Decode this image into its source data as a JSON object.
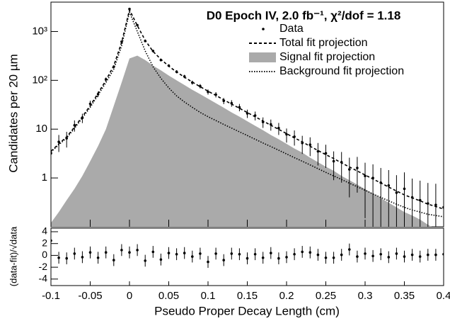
{
  "chart_data": [
    {
      "type": "line",
      "title": "D0 Epoch IV, 2.0 fb⁻¹, χ²/dof = 1.18",
      "y_label": "Candidates per 20 µm",
      "x": [
        -0.1,
        -0.09,
        -0.08,
        -0.07,
        -0.06,
        -0.05,
        -0.04,
        -0.03,
        -0.02,
        -0.01,
        0,
        0.01,
        0.02,
        0.03,
        0.04,
        0.05,
        0.06,
        0.07,
        0.08,
        0.09,
        0.1,
        0.11,
        0.12,
        0.13,
        0.14,
        0.15,
        0.16,
        0.17,
        0.18,
        0.19,
        0.2,
        0.21,
        0.22,
        0.23,
        0.24,
        0.25,
        0.26,
        0.27,
        0.28,
        0.29,
        0.3,
        0.31,
        0.32,
        0.33,
        0.34,
        0.35,
        0.36,
        0.37,
        0.38,
        0.39,
        0.4
      ],
      "xlim": [
        -0.1,
        0.4
      ],
      "ylim": [
        0.1,
        4000
      ],
      "log_y": true,
      "yticks": [
        1,
        10,
        {
          "value": 100,
          "label": "10²"
        },
        {
          "value": 1000,
          "label": "10³"
        }
      ],
      "legend": "upper right",
      "series": [
        {
          "name": "Signal fit projection",
          "color": "#aaaaaa",
          "style": "area",
          "values": [
            0.12,
            0.2,
            0.35,
            0.6,
            1.1,
            2.2,
            4.5,
            10,
            30,
            90,
            280,
            320,
            260,
            200,
            160,
            125,
            100,
            80,
            64,
            52,
            42,
            34,
            27.5,
            22,
            18,
            14.5,
            11.7,
            9.5,
            7.6,
            6.2,
            5,
            4,
            3.3,
            2.6,
            2.1,
            1.7,
            1.4,
            1.1,
            0.9,
            0.73,
            0.59,
            0.48,
            0.39,
            0.31,
            0.25,
            0.2,
            0.17,
            0.14,
            0.11,
            0.09,
            0.07
          ]
        },
        {
          "name": "Total fit projection",
          "color": "#000000",
          "style": "dashed",
          "values": [
            3.52,
            5,
            6.95,
            11,
            18.1,
            30.2,
            54.5,
            100,
            200,
            600,
            2780,
            1320,
            660,
            390,
            270,
            195,
            148,
            116,
            92,
            74,
            60,
            49,
            40,
            32.5,
            26.8,
            21.9,
            17.9,
            14.7,
            12,
            9.9,
            8.1,
            6.6,
            5.5,
            4.45,
            3.65,
            3,
            2.5,
            2.03,
            1.68,
            1.39,
            1.15,
            0.95,
            0.79,
            0.65,
            0.54,
            0.45,
            0.39,
            0.34,
            0.29,
            0.26,
            0.23
          ]
        },
        {
          "name": "Background fit projection",
          "color": "#000000",
          "style": "dotted",
          "values": [
            3.4,
            4.8,
            6.6,
            10.4,
            17,
            28,
            50,
            90,
            170,
            510,
            2500,
            1000,
            400,
            190,
            110,
            70,
            48,
            36,
            28,
            22,
            18,
            15,
            12.5,
            10.5,
            8.8,
            7.4,
            6.2,
            5.2,
            4.4,
            3.7,
            3.1,
            2.6,
            2.2,
            1.85,
            1.55,
            1.3,
            1.1,
            0.93,
            0.78,
            0.66,
            0.56,
            0.47,
            0.4,
            0.34,
            0.29,
            0.25,
            0.22,
            0.2,
            0.18,
            0.17,
            0.16
          ]
        },
        {
          "name": "Data",
          "color": "#000000",
          "style": "points",
          "values": [
            3.2,
            5.5,
            6.5,
            12,
            17,
            33,
            52,
            105,
            190,
            620,
            2900,
            1350,
            640,
            400,
            260,
            200,
            150,
            120,
            90,
            76,
            58,
            51,
            38,
            34,
            28,
            21,
            19,
            14,
            12.5,
            10.5,
            7.8,
            7,
            5.2,
            4.8,
            3.5,
            3.2,
            2.2,
            2.1,
            1.5,
            1.6,
            1.1,
            1.0,
            0.8,
            0.7,
            0.5,
            0.6,
            0.4,
            0.35,
            0.3,
            0.28,
            0.25
          ],
          "errors": [
            1.6,
            2.1,
            2.3,
            3.1,
            3.7,
            5.2,
            6.5,
            9.2,
            12.4,
            22,
            48,
            33,
            23,
            18,
            14.5,
            12.7,
            11,
            9.9,
            8.5,
            7.8,
            6.9,
            6.4,
            5.5,
            5.2,
            4.8,
            4.1,
            3.9,
            3.4,
            3.2,
            2.9,
            2.5,
            2.4,
            2.1,
            2,
            1.7,
            1.6,
            1.3,
            1.3,
            1.1,
            1.1,
            0.95,
            0.9,
            0.8,
            0.75,
            0.64,
            0.7,
            0.57,
            0.53,
            0.49,
            0.48,
            0.45
          ]
        }
      ]
    },
    {
      "type": "scatter",
      "x_label": "Pseudo Proper Decay Length  (cm)",
      "y_label": "(data-fit)/√data",
      "x": [
        -0.1,
        -0.09,
        -0.08,
        -0.07,
        -0.06,
        -0.05,
        -0.04,
        -0.03,
        -0.02,
        -0.01,
        0,
        0.01,
        0.02,
        0.03,
        0.04,
        0.05,
        0.06,
        0.07,
        0.08,
        0.09,
        0.1,
        0.11,
        0.12,
        0.13,
        0.14,
        0.15,
        0.16,
        0.17,
        0.18,
        0.19,
        0.2,
        0.21,
        0.22,
        0.23,
        0.24,
        0.25,
        0.26,
        0.27,
        0.28,
        0.29,
        0.3,
        0.31,
        0.32,
        0.33,
        0.34,
        0.35,
        0.36,
        0.37,
        0.38,
        0.39,
        0.4
      ],
      "xlim": [
        -0.1,
        0.4
      ],
      "ylim": [
        -5.1,
        4.6
      ],
      "xticks": [
        -0.1,
        -0.05,
        0,
        0.05,
        0.1,
        0.15,
        0.2,
        0.25,
        0.3,
        0.35,
        0.4
      ],
      "yticks": [
        -4,
        -2,
        0,
        2,
        4
      ],
      "series": [
        {
          "color": "#000000",
          "style": "points",
          "values": [
            2.5,
            -0.4,
            -0.5,
            0.3,
            -0.3,
            0.5,
            -0.4,
            0.5,
            -0.8,
            0.9,
            0.5,
            0.9,
            -0.9,
            0.6,
            -0.7,
            0.4,
            0.2,
            0.4,
            -0.2,
            0.3,
            -1.1,
            0.3,
            -0.8,
            0.3,
            0.2,
            -0.5,
            0.2,
            -0.4,
            0.4,
            -0.5,
            -0.3,
            0.2,
            0.6,
            0.5,
            0.1,
            -0.4,
            -0.4,
            0.1,
            1.0,
            -0.2,
            0.3,
            -0.1,
            0.2,
            -0.3,
            0.3,
            -0.2,
            0.1,
            -0.2,
            0.1,
            0.1,
            0.2
          ],
          "errors": [
            1,
            1,
            1,
            1,
            1,
            1,
            1,
            1,
            1,
            1,
            1,
            1,
            1,
            1,
            1,
            1,
            1,
            1,
            1,
            1,
            1,
            1,
            1,
            1,
            1,
            1,
            1,
            1,
            1,
            1,
            1,
            1,
            1,
            1,
            1,
            1,
            1,
            1,
            1,
            1,
            1,
            1,
            1,
            1,
            1,
            1,
            1,
            1,
            1,
            1,
            1
          ]
        }
      ]
    }
  ]
}
